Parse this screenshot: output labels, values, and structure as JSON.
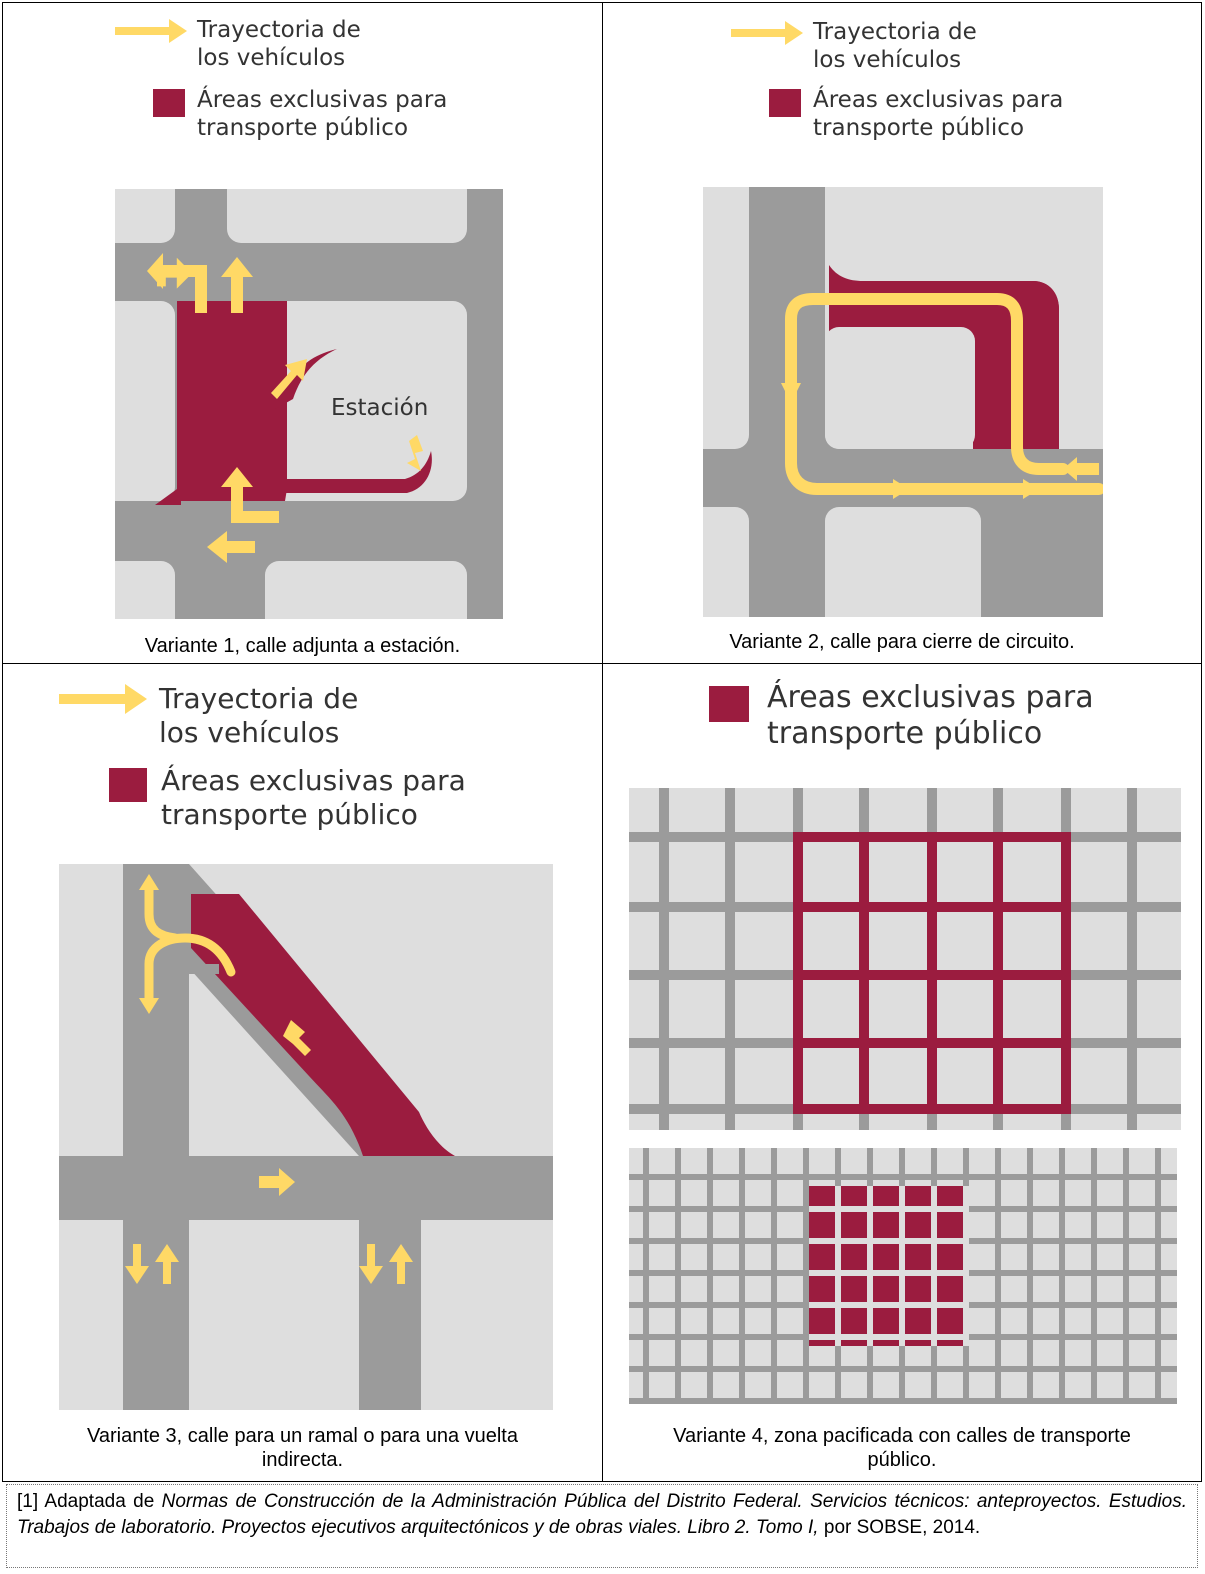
{
  "legend": {
    "trajectory_line1": "Trayectoria de",
    "trajectory_line2": "los vehículos",
    "exclusive_line1": "Áreas exclusivas para",
    "exclusive_line2": "transporte público"
  },
  "panels": [
    {
      "id": "variante-1",
      "caption": "Variante 1, calle adjunta a estación.",
      "label": "Estación"
    },
    {
      "id": "variante-2",
      "caption": "Variante 2, calle para cierre de circuito."
    },
    {
      "id": "variante-3",
      "caption_line1": "Variante 3, calle para un ramal o para una vuelta",
      "caption_line2": "indirecta."
    },
    {
      "id": "variante-4",
      "caption_line1": "Variante 4, zona pacificada con calles de transporte",
      "caption_line2": "público."
    }
  ],
  "source": {
    "prefix": "[1] Adaptada de ",
    "title": "Normas de Construcción de la Administración Pública del Distrito Federal. Servicios técnicos: anteproyectos. Estudios. Trabajos de laboratorio. Proyectos ejecutivos arquitectónicos y de obras viales. Libro 2. Tomo I,",
    "suffix": " por SOBSE, 2014."
  },
  "colors": {
    "road": "#9b9b9b",
    "block": "#dedede",
    "exclusive": "#9b1c3f",
    "trajectory": "#ffd966"
  }
}
